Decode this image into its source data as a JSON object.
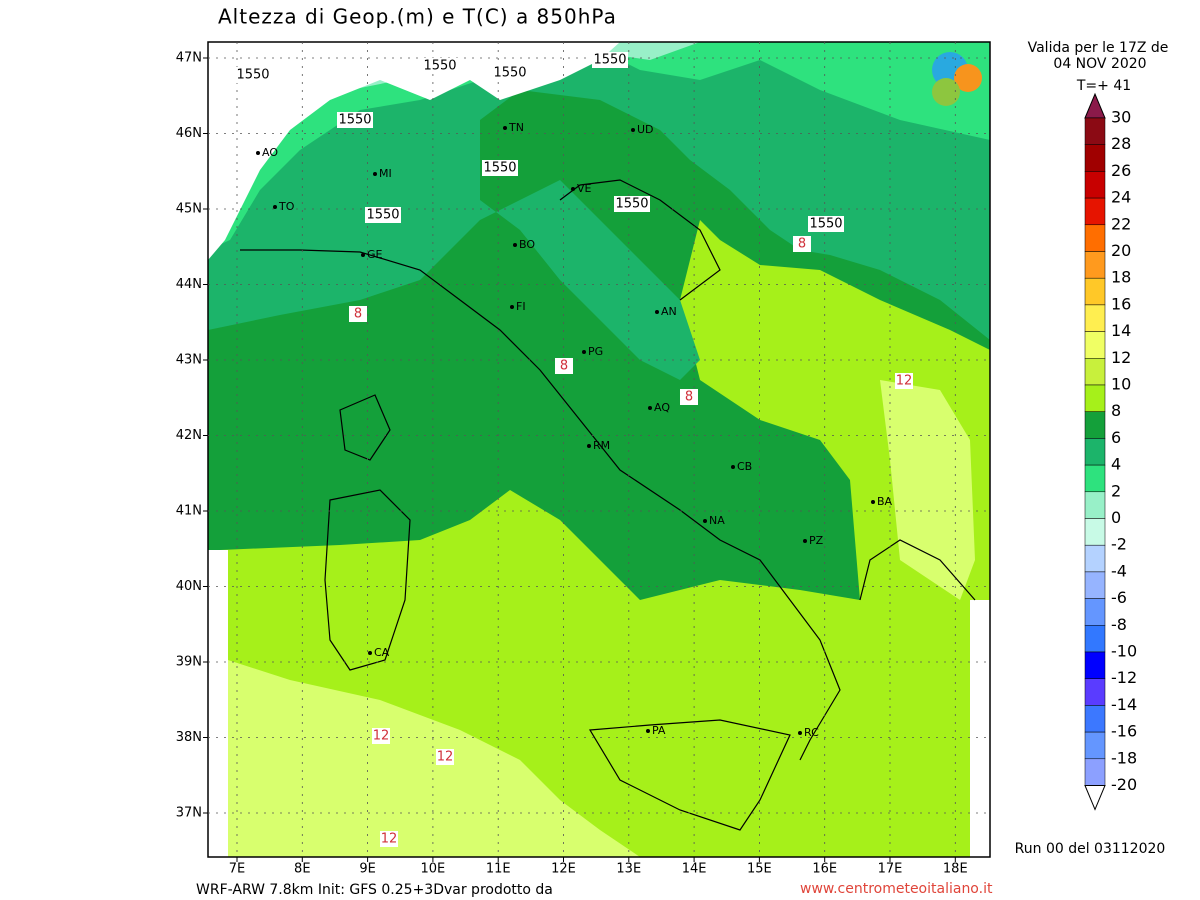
{
  "title": "Altezza di Geop.(m) e T(C) a 850hPa",
  "valid": [
    "Valida per le 17Z de",
    "04 NOV 2020",
    "T=+ 41"
  ],
  "lat_labels": [
    "47N",
    "46N",
    "45N",
    "44N",
    "43N",
    "42N",
    "41N",
    "40N",
    "39N",
    "38N",
    "37N"
  ],
  "lon_labels": [
    "7E",
    "8E",
    "9E",
    "10E",
    "11E",
    "12E",
    "13E",
    "14E",
    "15E",
    "16E",
    "17E",
    "18E"
  ],
  "colorbar": {
    "levels": [
      30,
      28,
      26,
      24,
      22,
      20,
      18,
      16,
      14,
      12,
      10,
      8,
      6,
      4,
      2,
      0,
      -2,
      -4,
      -6,
      -8,
      -10,
      -12,
      -14,
      -16,
      -18,
      -20
    ],
    "colors": [
      "#8b0a14",
      "#a00000",
      "#c80000",
      "#e61400",
      "#ff6e00",
      "#ff9a1e",
      "#ffc828",
      "#ffee50",
      "#f0ff64",
      "#c8f03c",
      "#a6f01a",
      "#14a03a",
      "#1cb46a",
      "#2ee27e",
      "#98f0c8",
      "#c8fae6",
      "#b4d2ff",
      "#96b4ff",
      "#6496ff",
      "#3278ff",
      "#0000ff",
      "#5a3cff",
      "#3c78ff",
      "#6496ff",
      "#8ca0ff"
    ],
    "top_color": "#8b1a4a",
    "bottom_color": "#ffffff",
    "bottom_below_color": "#aaaaaa"
  },
  "cities": [
    "AO",
    "MI",
    "TO",
    "GE",
    "TN",
    "UD",
    "VE",
    "BO",
    "FI",
    "PG",
    "AN",
    "AQ",
    "RM",
    "CB",
    "NA",
    "PZ",
    "BA",
    "CA",
    "PA",
    "RC"
  ],
  "geopotential_labels": [
    "1550",
    "1550",
    "1550",
    "1550",
    "1550",
    "1550",
    "1550",
    "1550",
    "1550"
  ],
  "temperature_labels": [
    "8",
    "8",
    "8",
    "8",
    "12",
    "12",
    "12",
    "12"
  ],
  "run": "Run 00 del 03112020",
  "footer": "WRF-ARW 7.8km Init: GFS 0.25+3Dvar prodotto da",
  "website": "www.centrometeoitaliano.it"
}
